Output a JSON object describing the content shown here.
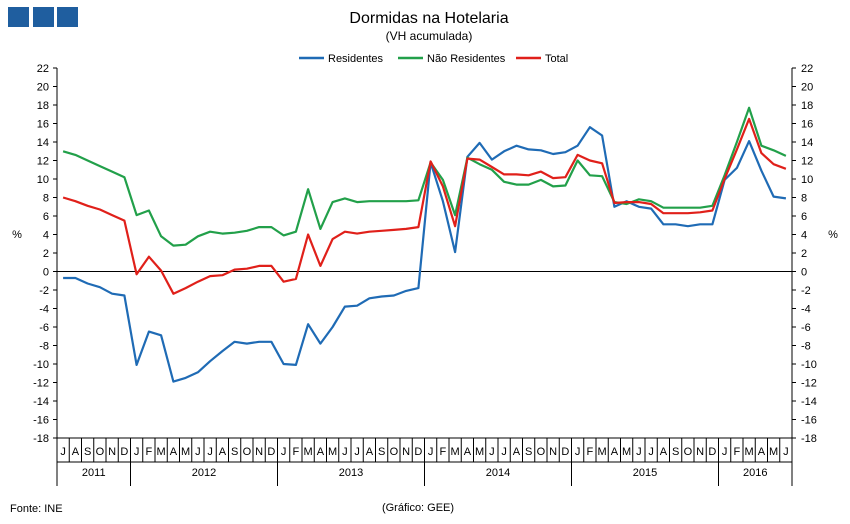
{
  "header": {
    "logo_name": "gee-logo-boxes"
  },
  "footer": {
    "source": "Fonte: INE",
    "credit": "(Gráfico: GEE)"
  },
  "chart_data": {
    "type": "line",
    "title": "Dormidas na Hotelaria",
    "subtitle": "(VH acumulada)",
    "ylabel_left": "%",
    "ylabel_right": "%",
    "ylim": [
      -18,
      22
    ],
    "ytick_step": 2,
    "grid": false,
    "legend_position": "top-center",
    "months": [
      "J",
      "A",
      "S",
      "O",
      "N",
      "D",
      "J",
      "F",
      "M",
      "A",
      "M",
      "J",
      "J",
      "A",
      "S",
      "O",
      "N",
      "D",
      "J",
      "F",
      "M",
      "A",
      "M",
      "J",
      "J",
      "A",
      "S",
      "O",
      "N",
      "D",
      "J",
      "F",
      "M",
      "A",
      "M",
      "J",
      "J",
      "A",
      "S",
      "O",
      "N",
      "D",
      "J",
      "F",
      "M",
      "A",
      "M",
      "J",
      "J",
      "A",
      "S",
      "O",
      "N",
      "D",
      "J",
      "F",
      "M",
      "A",
      "M",
      "J"
    ],
    "years": [
      {
        "label": "2011",
        "start": 0,
        "count": 6
      },
      {
        "label": "2012",
        "start": 6,
        "count": 12
      },
      {
        "label": "2013",
        "start": 18,
        "count": 12
      },
      {
        "label": "2014",
        "start": 30,
        "count": 12
      },
      {
        "label": "2015",
        "start": 42,
        "count": 12
      },
      {
        "label": "2016",
        "start": 54,
        "count": 6
      }
    ],
    "series": [
      {
        "name": "Residentes",
        "color": "#1f6bb5",
        "values": [
          -0.7,
          -0.7,
          -1.3,
          -1.7,
          -2.4,
          -2.6,
          -10.1,
          -6.5,
          -6.9,
          -11.9,
          -11.5,
          -10.9,
          -9.7,
          -8.6,
          -7.6,
          -7.8,
          -7.6,
          -7.6,
          -10.0,
          -10.1,
          -5.7,
          -7.8,
          -6.0,
          -3.8,
          -3.7,
          -2.9,
          -2.7,
          -2.6,
          -2.1,
          -1.8,
          11.8,
          7.6,
          2.1,
          12.4,
          13.9,
          12.1,
          13.0,
          13.6,
          13.2,
          13.1,
          12.7,
          12.9,
          13.6,
          15.6,
          14.7,
          7.0,
          7.6,
          7.0,
          6.8,
          5.1,
          5.1,
          4.9,
          5.1,
          5.1,
          9.9,
          11.2,
          14.1,
          10.9,
          8.1,
          7.9
        ]
      },
      {
        "name": "Não Residentes",
        "color": "#22a04a",
        "values": [
          13.0,
          12.6,
          12.0,
          11.4,
          10.8,
          10.2,
          6.1,
          6.6,
          3.8,
          2.8,
          2.9,
          3.8,
          4.3,
          4.1,
          4.2,
          4.4,
          4.8,
          4.8,
          3.9,
          4.3,
          8.9,
          4.6,
          7.5,
          7.9,
          7.5,
          7.6,
          7.6,
          7.6,
          7.6,
          7.7,
          11.8,
          9.9,
          6.1,
          12.3,
          11.6,
          11.0,
          9.7,
          9.4,
          9.4,
          9.9,
          9.2,
          9.3,
          12.0,
          10.4,
          10.3,
          7.5,
          7.3,
          7.8,
          7.6,
          6.9,
          6.9,
          6.9,
          6.9,
          7.1,
          10.4,
          14.0,
          17.7,
          13.6,
          13.1,
          12.5
        ]
      },
      {
        "name": "Total",
        "color": "#e0201a",
        "values": [
          8.0,
          7.6,
          7.1,
          6.7,
          6.1,
          5.5,
          -0.3,
          1.6,
          0.1,
          -2.4,
          -1.8,
          -1.1,
          -0.5,
          -0.4,
          0.2,
          0.3,
          0.6,
          0.6,
          -1.1,
          -0.8,
          4.0,
          0.6,
          3.5,
          4.3,
          4.1,
          4.3,
          4.4,
          4.5,
          4.6,
          4.8,
          11.9,
          9.2,
          4.9,
          12.2,
          12.1,
          11.3,
          10.5,
          10.5,
          10.4,
          10.8,
          10.1,
          10.2,
          12.6,
          12.0,
          11.7,
          7.4,
          7.5,
          7.5,
          7.3,
          6.3,
          6.3,
          6.3,
          6.4,
          6.6,
          10.0,
          13.2,
          16.5,
          12.8,
          11.6,
          11.1
        ]
      }
    ]
  }
}
